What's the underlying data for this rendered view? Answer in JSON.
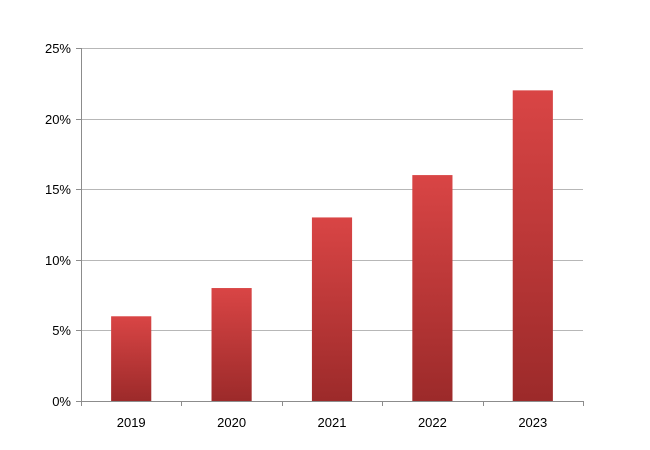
{
  "chart_data": {
    "type": "bar",
    "categories": [
      "2019",
      "2020",
      "2021",
      "2022",
      "2023"
    ],
    "values": [
      6,
      8,
      13,
      16,
      22
    ],
    "title": "",
    "xlabel": "",
    "ylabel": "",
    "ylim": [
      0,
      25
    ],
    "y_ticks": [
      0,
      5,
      10,
      15,
      20,
      25
    ],
    "y_tick_format": "percent",
    "grid": true,
    "legend": "none",
    "colors": {
      "bar_top": "#d94545",
      "bar_bottom": "#9c2a2a",
      "grid": "#b7b7b7",
      "axis": "#8c8c8c"
    }
  }
}
